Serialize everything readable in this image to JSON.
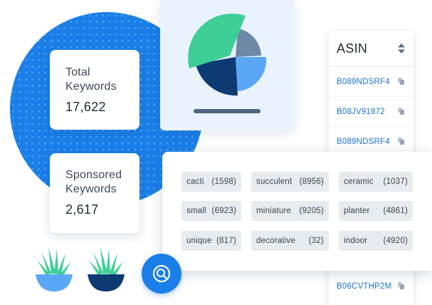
{
  "stats": {
    "total": {
      "label_line1": "Total",
      "label_line2": "Keywords",
      "value": "17,622"
    },
    "sponsored": {
      "label_line1": "Sponsored",
      "label_line2": "Keywords",
      "value": "2,617"
    }
  },
  "asin_panel": {
    "title": "ASIN",
    "rows": [
      "B089NDSRF4",
      "B08JV91872",
      "B089NDSRF4"
    ],
    "bottom_row": "B06CVTHP2M"
  },
  "keywords": [
    {
      "word": "cacti",
      "count": "(1598)"
    },
    {
      "word": "succulent",
      "count": "(8956)"
    },
    {
      "word": "ceramic",
      "count": "(1037)"
    },
    {
      "word": "small",
      "count": "(6923)"
    },
    {
      "word": "miniature",
      "count": "(9205)"
    },
    {
      "word": "planter",
      "count": "(4861)"
    },
    {
      "word": "unique",
      "count": "(817)"
    },
    {
      "word": "decorative",
      "count": "(32)"
    },
    {
      "word": "indoor",
      "count": "(4920)"
    }
  ],
  "colors": {
    "brand_blue": "#1a7fe8",
    "pie_green": "#3ecf96",
    "pie_slate": "#6e89a6",
    "pie_light_blue": "#5aa8f5",
    "pie_navy": "#0e3a73",
    "asin_link": "#1e73d8"
  },
  "icons": {
    "sort": "sort-updown-icon",
    "copy": "copy-icon",
    "search": "search-icon"
  }
}
